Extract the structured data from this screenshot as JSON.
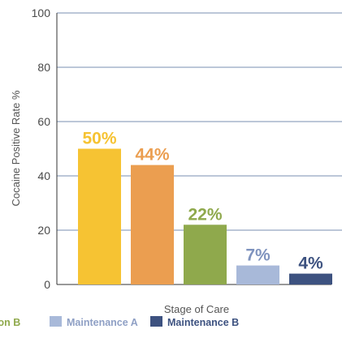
{
  "chart_data": {
    "type": "bar",
    "xlabel": "Stage of Care",
    "ylabel": "Cocaine Positive Rate %",
    "ylim": [
      0,
      100
    ],
    "yticks": [
      0,
      20,
      40,
      60,
      80,
      100
    ],
    "grid": true,
    "legend_position": "bottom",
    "series": [
      {
        "label": "50%",
        "value": 50,
        "color": "#F6C333"
      },
      {
        "label": "44%",
        "value": 44,
        "color": "#EB9E50"
      },
      {
        "label": "22%",
        "value": 22,
        "color": "#8FA94C"
      },
      {
        "label": "7%",
        "value": 7,
        "color": "#A8B9D9"
      },
      {
        "label": "4%",
        "value": 4,
        "color": "#3D5280"
      }
    ],
    "legend": [
      {
        "name": "ion B",
        "color": "#8FA94C"
      },
      {
        "name": "Maintenance A",
        "color": "#A8B9D9"
      },
      {
        "name": "Maintenance B",
        "color": "#3D5280"
      }
    ]
  }
}
